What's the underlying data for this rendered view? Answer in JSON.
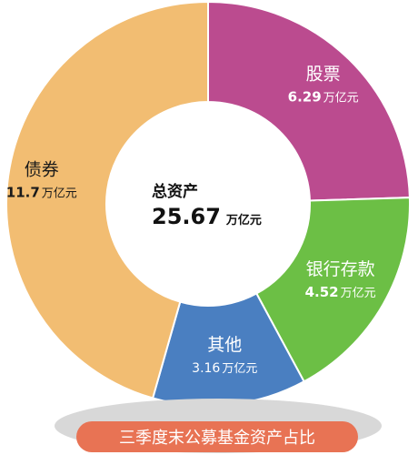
{
  "chart_data": {
    "type": "pie",
    "variant": "donut",
    "title": "三季度末公募基金资产占比",
    "center_title": "总资产",
    "total_value": "25.67",
    "unit": "万亿元",
    "slices": [
      {
        "name": "股票",
        "value": 6.29,
        "value_label": "6.29",
        "color": "#bb4b8f"
      },
      {
        "name": "银行存款",
        "value": 4.52,
        "value_label": "4.52",
        "color": "#6cbf45"
      },
      {
        "name": "其他",
        "value": 3.16,
        "value_label": "3.16",
        "color": "#4a7fc1"
      },
      {
        "name": "债券",
        "value": 11.7,
        "value_label": "11.7",
        "color": "#f2bd72"
      }
    ],
    "legend": "none",
    "colors": {
      "stroke": "#ffffff",
      "center_fill": "#ffffff",
      "title_banner": "#e87354",
      "title_shadow": "#d8d8d8",
      "title_text": "#ffffff"
    }
  }
}
